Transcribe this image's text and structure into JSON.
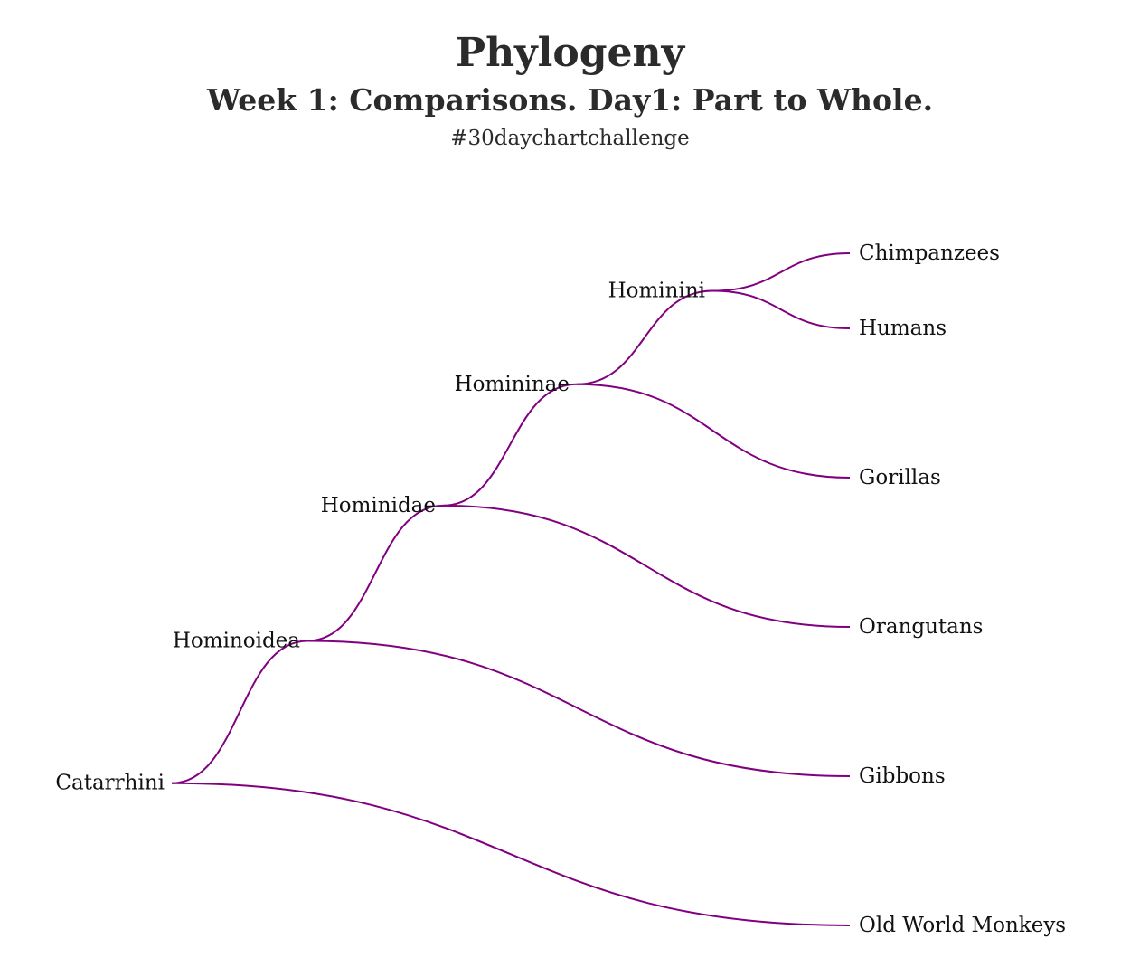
{
  "header": {
    "title": "Phylogeny",
    "subtitle": "Week 1: Comparisons. Day1: Part to Whole.",
    "hashtag": "#30daychartchallenge"
  },
  "colors": {
    "branch": "#800080",
    "text": "#111111",
    "title": "#2b2b2b"
  },
  "tree": {
    "root": "Catarrhini",
    "nodes": [
      {
        "id": "catarrhini",
        "label": "Catarrhini",
        "parent": null,
        "depth": 0,
        "leaf": false
      },
      {
        "id": "hominoidea",
        "label": "Hominoidea",
        "parent": "catarrhini",
        "depth": 1,
        "leaf": false
      },
      {
        "id": "old-world-monkeys",
        "label": "Old World Monkeys",
        "parent": "catarrhini",
        "depth": 5,
        "leaf": true
      },
      {
        "id": "hominidae",
        "label": "Hominidae",
        "parent": "hominoidea",
        "depth": 2,
        "leaf": false
      },
      {
        "id": "gibbons",
        "label": "Gibbons",
        "parent": "hominoidea",
        "depth": 5,
        "leaf": true
      },
      {
        "id": "homininae",
        "label": "Homininae",
        "parent": "hominidae",
        "depth": 3,
        "leaf": false
      },
      {
        "id": "orangutans",
        "label": "Orangutans",
        "parent": "hominidae",
        "depth": 5,
        "leaf": true
      },
      {
        "id": "hominini",
        "label": "Hominini",
        "parent": "homininae",
        "depth": 4,
        "leaf": false
      },
      {
        "id": "gorillas",
        "label": "Gorillas",
        "parent": "homininae",
        "depth": 5,
        "leaf": true
      },
      {
        "id": "chimpanzees",
        "label": "Chimpanzees",
        "parent": "hominini",
        "depth": 5,
        "leaf": true
      },
      {
        "id": "humans",
        "label": "Humans",
        "parent": "hominini",
        "depth": 5,
        "leaf": true
      }
    ]
  }
}
